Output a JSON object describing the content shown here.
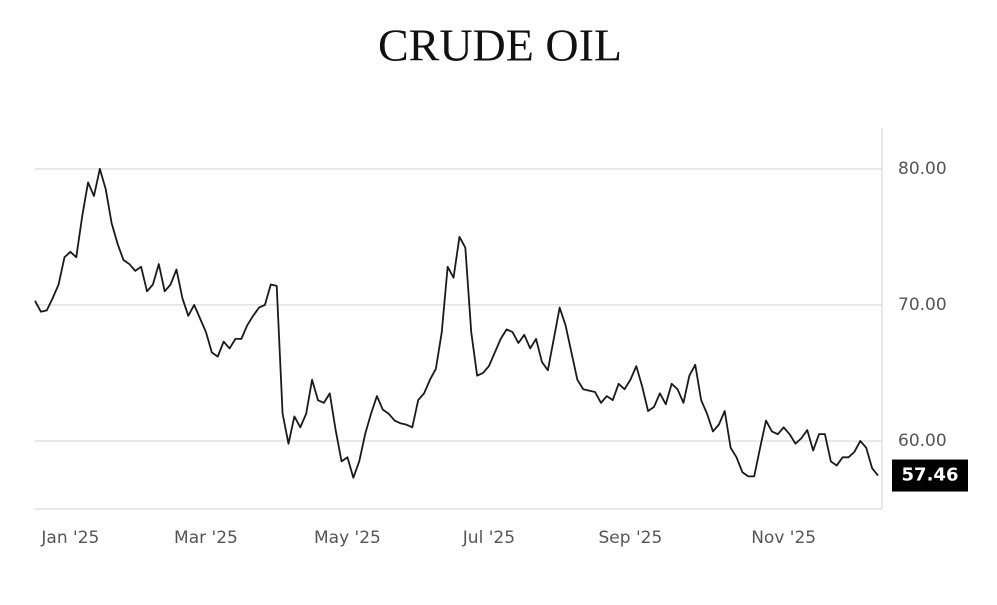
{
  "chart_data": {
    "type": "line",
    "title": "CRUDE OIL",
    "categories": [
      null,
      null,
      null,
      null,
      null,
      null,
      "Jan '25",
      null,
      null,
      null,
      null,
      null,
      null,
      null,
      null,
      null,
      null,
      null,
      null,
      null,
      null,
      null,
      null,
      null,
      null,
      null,
      null,
      null,
      null,
      "Mar '25",
      null,
      null,
      null,
      null,
      null,
      null,
      null,
      null,
      null,
      null,
      null,
      null,
      null,
      null,
      null,
      null,
      null,
      null,
      null,
      null,
      null,
      null,
      null,
      "May '25",
      null,
      null,
      null,
      null,
      null,
      null,
      null,
      null,
      null,
      null,
      null,
      null,
      null,
      null,
      null,
      null,
      null,
      null,
      null,
      null,
      null,
      null,
      null,
      "Jul '25",
      null,
      null,
      null,
      null,
      null,
      null,
      null,
      null,
      null,
      null,
      null,
      null,
      null,
      null,
      null,
      null,
      null,
      null,
      null,
      null,
      null,
      null,
      null,
      "Sep '25",
      null,
      null,
      null,
      null,
      null,
      null,
      null,
      null,
      null,
      null,
      null,
      null,
      null,
      null,
      null,
      null,
      null,
      null,
      null,
      null,
      null,
      null,
      null,
      null,
      null,
      "Nov '25",
      null,
      null,
      null,
      null,
      null,
      null,
      null,
      null,
      null,
      null,
      null,
      null,
      null,
      null,
      null,
      null
    ],
    "values": [
      70.3,
      69.5,
      69.6,
      70.5,
      71.5,
      73.5,
      73.9,
      73.5,
      76.5,
      79,
      78,
      80,
      78.5,
      76,
      74.5,
      73.3,
      73,
      72.5,
      72.8,
      71,
      71.5,
      73,
      71,
      71.5,
      72.6,
      70.5,
      69.2,
      70,
      69,
      68,
      66.5,
      66.2,
      67.3,
      66.8,
      67.5,
      67.5,
      68.5,
      69.2,
      69.8,
      70,
      71.5,
      71.4,
      62,
      59.8,
      61.8,
      61,
      62,
      64.5,
      63,
      62.8,
      63.5,
      60.8,
      58.5,
      58.8,
      57.3,
      58.5,
      60.5,
      62,
      63.3,
      62.3,
      62,
      61.5,
      61.3,
      61.2,
      61,
      63,
      63.5,
      64.5,
      65.3,
      68,
      72.8,
      72,
      75,
      74.2,
      68,
      64.8,
      65,
      65.5,
      66.5,
      67.5,
      68.2,
      68,
      67.2,
      67.8,
      66.8,
      67.5,
      65.8,
      65.2,
      67.5,
      69.8,
      68.5,
      66.5,
      64.5,
      63.8,
      63.7,
      63.6,
      62.8,
      63.3,
      63,
      64.2,
      63.8,
      64.5,
      65.5,
      64,
      62.2,
      62.5,
      63.5,
      62.7,
      64.2,
      63.8,
      62.8,
      64.8,
      65.6,
      63,
      62,
      60.7,
      61.2,
      62.2,
      59.5,
      58.8,
      57.7,
      57.4,
      57.4,
      59.5,
      61.5,
      60.7,
      60.5,
      61,
      60.5,
      59.8,
      60.2,
      60.8,
      59.3,
      60.5,
      60.5,
      58.5,
      58.2,
      58.8,
      58.8,
      59.2,
      60,
      59.5,
      58,
      57.46
    ],
    "color": "#1a1a1a",
    "ylim": [
      55,
      83
    ],
    "yticks": [
      {
        "value": 60,
        "label": "60.00"
      },
      {
        "value": 70,
        "label": "70.00"
      },
      {
        "value": 80,
        "label": "80.00"
      }
    ],
    "grid": true
  }
}
